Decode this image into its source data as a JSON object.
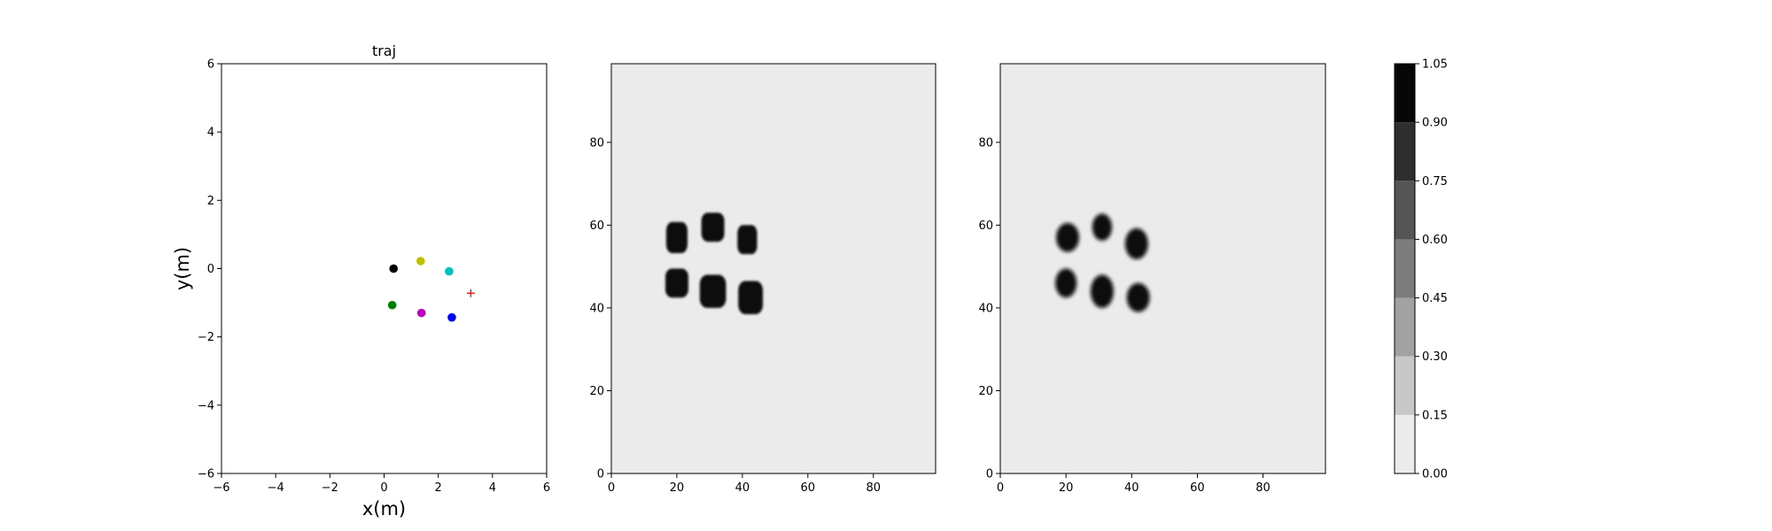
{
  "chart_data": [
    {
      "type": "scatter",
      "title": "traj",
      "xlabel": "x(m)",
      "ylabel": "y(m)",
      "xlim": [
        -6,
        6
      ],
      "ylim": [
        -6,
        6
      ],
      "xticks": [
        -6,
        -4,
        -2,
        0,
        2,
        4,
        6
      ],
      "yticks": [
        -6,
        -4,
        -2,
        0,
        2,
        4,
        6
      ],
      "grid": false,
      "points": [
        {
          "x": 0.35,
          "y": 0.0,
          "color": "#000000",
          "marker": "circle"
        },
        {
          "x": 1.35,
          "y": 0.22,
          "color": "#bfbf00",
          "marker": "circle"
        },
        {
          "x": 2.4,
          "y": -0.08,
          "color": "#00bfbf",
          "marker": "circle"
        },
        {
          "x": 0.3,
          "y": -1.07,
          "color": "#008000",
          "marker": "circle"
        },
        {
          "x": 1.38,
          "y": -1.3,
          "color": "#bf00bf",
          "marker": "circle"
        },
        {
          "x": 2.5,
          "y": -1.43,
          "color": "#0000ff",
          "marker": "circle"
        }
      ],
      "target": {
        "x": 3.2,
        "y": -0.72,
        "color": "#ff0000",
        "marker": "plus"
      }
    },
    {
      "type": "heatmap",
      "xlim": [
        0,
        99
      ],
      "ylim": [
        0,
        99
      ],
      "xticks": [
        0,
        20,
        40,
        60,
        80
      ],
      "yticks": [
        0,
        20,
        40,
        60,
        80
      ],
      "background_value": 0.05,
      "shape": "square",
      "blobs": [
        {
          "x": 20,
          "y": 57,
          "w": 6.5,
          "h": 7.5,
          "value": 1.0
        },
        {
          "x": 31,
          "y": 59.5,
          "w": 7,
          "h": 7,
          "value": 1.0
        },
        {
          "x": 41.5,
          "y": 56.5,
          "w": 6,
          "h": 7,
          "value": 1.0
        },
        {
          "x": 20,
          "y": 46,
          "w": 7,
          "h": 7,
          "value": 1.0
        },
        {
          "x": 31,
          "y": 44,
          "w": 8,
          "h": 8,
          "value": 1.0
        },
        {
          "x": 42.5,
          "y": 42.5,
          "w": 7.5,
          "h": 8,
          "value": 1.0
        }
      ]
    },
    {
      "type": "heatmap",
      "xlim": [
        0,
        99
      ],
      "ylim": [
        0,
        99
      ],
      "xticks": [
        0,
        20,
        40,
        60,
        80
      ],
      "yticks": [
        0,
        20,
        40,
        60,
        80
      ],
      "background_value": 0.05,
      "shape": "round",
      "blobs": [
        {
          "x": 20.5,
          "y": 57,
          "w": 7,
          "h": 7,
          "value": 1.0
        },
        {
          "x": 31,
          "y": 59.5,
          "w": 6,
          "h": 6.5,
          "value": 1.0
        },
        {
          "x": 41.5,
          "y": 55.5,
          "w": 7,
          "h": 7.5,
          "value": 1.0
        },
        {
          "x": 20,
          "y": 46,
          "w": 6.5,
          "h": 7,
          "value": 1.0
        },
        {
          "x": 31,
          "y": 44,
          "w": 7,
          "h": 8,
          "value": 1.0
        },
        {
          "x": 42,
          "y": 42.5,
          "w": 7,
          "h": 7,
          "value": 1.0
        }
      ]
    }
  ],
  "colorbar": {
    "levels": [
      0.0,
      0.15,
      0.3,
      0.45,
      0.6,
      0.75,
      0.9,
      1.05
    ],
    "tick_labels": [
      "0.00",
      "0.15",
      "0.30",
      "0.45",
      "0.60",
      "0.75",
      "0.90",
      "1.05"
    ],
    "colors": [
      "#ebebeb",
      "#c8c8c8",
      "#a2a2a2",
      "#7c7c7c",
      "#555555",
      "#2e2e2e",
      "#070707"
    ]
  }
}
